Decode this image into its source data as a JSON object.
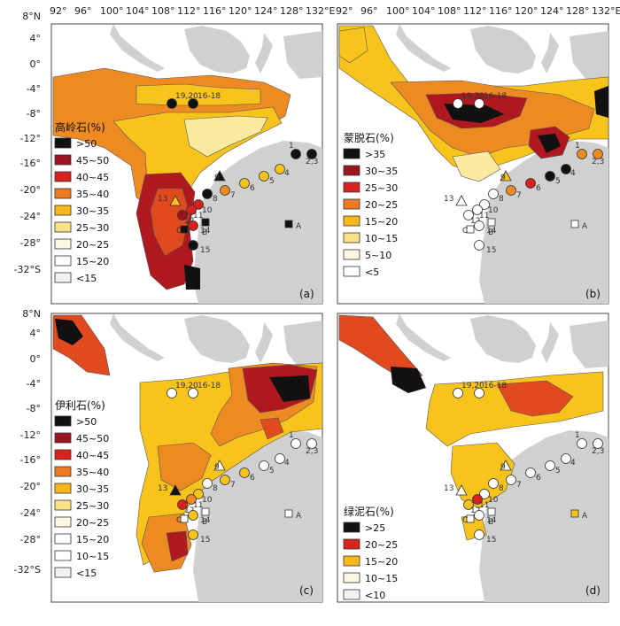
{
  "top_axis": [
    "92°",
    "96°",
    "100°",
    "104°",
    "108°",
    "112°",
    "116°",
    "120°",
    "124°",
    "128°",
    "132°E"
  ],
  "lat_left": [
    "8°N",
    "4°",
    "0°",
    "-4°",
    "-8°",
    "-12°",
    "-16°",
    "-20°",
    "-24°",
    "-28°",
    "-32°S"
  ],
  "lat_right": [
    "8°N",
    "4°",
    "0°",
    "-4°",
    "-8°",
    "-12°",
    "-16°",
    "-20°",
    "-24°",
    "-28°",
    "-32°S"
  ],
  "site_labels": {
    "s1920": "19,20",
    "s1618": "16-18",
    "s23": "2,3",
    "s1": "1",
    "s4": "4",
    "s5": "5",
    "s6": "6",
    "s7": "7",
    "s8": "8",
    "s9": "9",
    "s10": "10",
    "s11": "11",
    "s12": "12",
    "s13": "13",
    "s14": "14",
    "s15": "15",
    "sA": "A",
    "sB": "B",
    "sC": "C"
  },
  "panels": [
    {
      "id": "a",
      "title": "高岭石(%)",
      "panel_label": "(a)",
      "colors": {
        "deep": "#b01820",
        "mid": "#e04a1e",
        "orange": "#ee8a22",
        "yellow": "#f8c41c",
        "pale": "#fce9a0"
      },
      "legend": [
        {
          "label": ">50",
          "color": "#111111"
        },
        {
          "label": "45~50",
          "color": "#9c1420"
        },
        {
          "label": "40~45",
          "color": "#d8221e"
        },
        {
          "label": "35~40",
          "color": "#ee7a22"
        },
        {
          "label": "30~35",
          "color": "#f8b81c"
        },
        {
          "label": "25~30",
          "color": "#fbe289"
        },
        {
          "label": "20~25",
          "color": "#fdf6e0"
        },
        {
          "label": "15~20",
          "color": "#ffffff"
        },
        {
          "label": "<15",
          "color": "#f2f2f2"
        }
      ]
    },
    {
      "id": "b",
      "title": "蒙脱石(%)",
      "panel_label": "(b)",
      "colors": {
        "deep": "#b01820",
        "mid": "#e04a1e",
        "orange": "#ee8a22",
        "yellow": "#f8c41c",
        "pale": "#fce9a0"
      },
      "legend": [
        {
          "label": ">35",
          "color": "#111111"
        },
        {
          "label": "30~35",
          "color": "#9c1420"
        },
        {
          "label": "25~30",
          "color": "#d8221e"
        },
        {
          "label": "20~25",
          "color": "#ee7a22"
        },
        {
          "label": "15~20",
          "color": "#f8b81c"
        },
        {
          "label": "10~15",
          "color": "#fbe289"
        },
        {
          "label": "5~10",
          "color": "#fdf6e0"
        },
        {
          "label": "<5",
          "color": "#ffffff"
        }
      ]
    },
    {
      "id": "c",
      "title": "伊利石(%)",
      "panel_label": "(c)",
      "colors": {
        "deep": "#b01820",
        "mid": "#e04a1e",
        "orange": "#ee8a22",
        "yellow": "#f8c41c",
        "pale": "#fce9a0"
      },
      "legend": [
        {
          "label": ">50",
          "color": "#111111"
        },
        {
          "label": "45~50",
          "color": "#9c1420"
        },
        {
          "label": "40~45",
          "color": "#d8221e"
        },
        {
          "label": "35~40",
          "color": "#ee7a22"
        },
        {
          "label": "30~35",
          "color": "#f8b81c"
        },
        {
          "label": "25~30",
          "color": "#fbe289"
        },
        {
          "label": "20~25",
          "color": "#fdf6e0"
        },
        {
          "label": "15~20",
          "color": "#ffffff"
        },
        {
          "label": "10~15",
          "color": "#ffffff"
        },
        {
          "label": "<15",
          "color": "#f2f2f2"
        }
      ]
    },
    {
      "id": "d",
      "title": "绿泥石(%)",
      "panel_label": "(d)",
      "colors": {
        "deep": "#b01820",
        "mid": "#e04a1e",
        "orange": "#ee8a22",
        "yellow": "#f8c41c",
        "pale": "#fce9a0"
      },
      "legend": [
        {
          "label": ">25",
          "color": "#111111"
        },
        {
          "label": "20~25",
          "color": "#d8221e"
        },
        {
          "label": "15~20",
          "color": "#f8b81c"
        },
        {
          "label": "10~15",
          "color": "#fdf6e0"
        },
        {
          "label": "<10",
          "color": "#f2f2f2"
        }
      ]
    }
  ]
}
